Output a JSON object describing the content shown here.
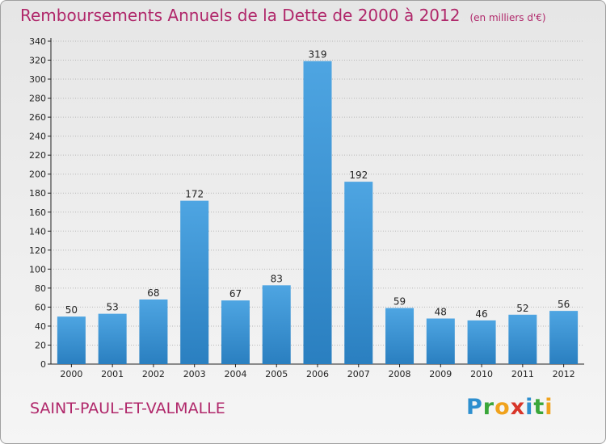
{
  "title": "Remboursements Annuels de la Dette de 2000 à 2012",
  "unit": "(en milliers d'€)",
  "commune": "SAINT-PAUL-ET-VALMALLE",
  "logo": {
    "letters": [
      "P",
      "r",
      "o",
      "x",
      "i",
      "t",
      "i"
    ],
    "colors": [
      "#2e8fcf",
      "#3aa63a",
      "#f0a21c",
      "#d8362a",
      "#2e8fcf",
      "#3aa63a",
      "#f0a21c"
    ]
  },
  "colors": {
    "bar": "#4ea5e2",
    "bar_dark": "#2a7fc0",
    "title": "#b0276a",
    "axis": "#222222",
    "grid": "#b8b8b8"
  },
  "chart_data": {
    "type": "bar",
    "categories": [
      "2000",
      "2001",
      "2002",
      "2003",
      "2004",
      "2005",
      "2006",
      "2007",
      "2008",
      "2009",
      "2010",
      "2011",
      "2012"
    ],
    "values": [
      50,
      53,
      68,
      172,
      67,
      83,
      319,
      192,
      59,
      48,
      46,
      52,
      56
    ],
    "ylim": [
      0,
      340
    ],
    "ytick_step": 20,
    "grid": true,
    "xlabel": "",
    "ylabel": ""
  }
}
